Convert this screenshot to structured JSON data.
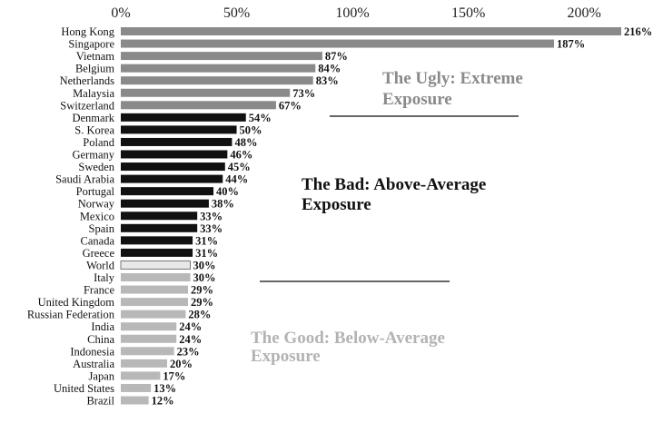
{
  "chart_data": {
    "type": "bar",
    "orientation": "horizontal",
    "title": "",
    "xlabel": "",
    "ylabel": "",
    "xlim": [
      0,
      216
    ],
    "x_ticks": [
      "0%",
      "50%",
      "100%",
      "150%",
      "200%"
    ],
    "x_tick_values": [
      0,
      50,
      100,
      150,
      200
    ],
    "grid": false,
    "colors": {
      "ugly": "#8a8a8a",
      "bad": "#111111",
      "world": "#e8e8e8",
      "world_stroke": "#777777",
      "good": "#b8b8b8",
      "divider": "#666666",
      "ugly_text": "#8a8a8a",
      "bad_text": "#111111",
      "good_text": "#b3b3b3"
    },
    "groups": [
      {
        "key": "ugly",
        "lines": [
          "The Ugly: Extreme",
          "Exposure"
        ]
      },
      {
        "key": "bad",
        "lines": [
          "The Bad: Above-Average",
          "Exposure"
        ]
      },
      {
        "key": "good",
        "lines": [
          "The Good: Below-Average",
          "Exposure"
        ]
      }
    ],
    "bars": [
      {
        "category": "Hong Kong",
        "value": 216,
        "label": "216%",
        "group": "ugly"
      },
      {
        "category": "Singapore",
        "value": 187,
        "label": "187%",
        "group": "ugly"
      },
      {
        "category": "Vietnam",
        "value": 87,
        "label": "87%",
        "group": "ugly"
      },
      {
        "category": "Belgium",
        "value": 84,
        "label": "84%",
        "group": "ugly"
      },
      {
        "category": "Netherlands",
        "value": 83,
        "label": "83%",
        "group": "ugly"
      },
      {
        "category": "Malaysia",
        "value": 73,
        "label": "73%",
        "group": "ugly"
      },
      {
        "category": "Switzerland",
        "value": 67,
        "label": "67%",
        "group": "ugly"
      },
      {
        "category": "Denmark",
        "value": 54,
        "label": "54%",
        "group": "bad"
      },
      {
        "category": "S. Korea",
        "value": 50,
        "label": "50%",
        "group": "bad"
      },
      {
        "category": "Poland",
        "value": 48,
        "label": "48%",
        "group": "bad"
      },
      {
        "category": "Germany",
        "value": 46,
        "label": "46%",
        "group": "bad"
      },
      {
        "category": "Sweden",
        "value": 45,
        "label": "45%",
        "group": "bad"
      },
      {
        "category": "Saudi Arabia",
        "value": 44,
        "label": "44%",
        "group": "bad"
      },
      {
        "category": "Portugal",
        "value": 40,
        "label": "40%",
        "group": "bad"
      },
      {
        "category": "Norway",
        "value": 38,
        "label": "38%",
        "group": "bad"
      },
      {
        "category": "Mexico",
        "value": 33,
        "label": "33%",
        "group": "bad"
      },
      {
        "category": "Spain",
        "value": 33,
        "label": "33%",
        "group": "bad"
      },
      {
        "category": "Canada",
        "value": 31,
        "label": "31%",
        "group": "bad"
      },
      {
        "category": "Greece",
        "value": 31,
        "label": "31%",
        "group": "bad"
      },
      {
        "category": "World",
        "value": 30,
        "label": "30%",
        "group": "world"
      },
      {
        "category": "Italy",
        "value": 30,
        "label": "30%",
        "group": "good"
      },
      {
        "category": "France",
        "value": 29,
        "label": "29%",
        "group": "good"
      },
      {
        "category": "United Kingdom",
        "value": 29,
        "label": "29%",
        "group": "good"
      },
      {
        "category": "Russian Federation",
        "value": 28,
        "label": "28%",
        "group": "good"
      },
      {
        "category": "India",
        "value": 24,
        "label": "24%",
        "group": "good"
      },
      {
        "category": "China",
        "value": 24,
        "label": "24%",
        "group": "good"
      },
      {
        "category": "Indonesia",
        "value": 23,
        "label": "23%",
        "group": "good"
      },
      {
        "category": "Australia",
        "value": 20,
        "label": "20%",
        "group": "good"
      },
      {
        "category": "Japan",
        "value": 17,
        "label": "17%",
        "group": "good"
      },
      {
        "category": "United States",
        "value": 13,
        "label": "13%",
        "group": "good"
      },
      {
        "category": "Brazil",
        "value": 12,
        "label": "12%",
        "group": "good"
      }
    ]
  }
}
